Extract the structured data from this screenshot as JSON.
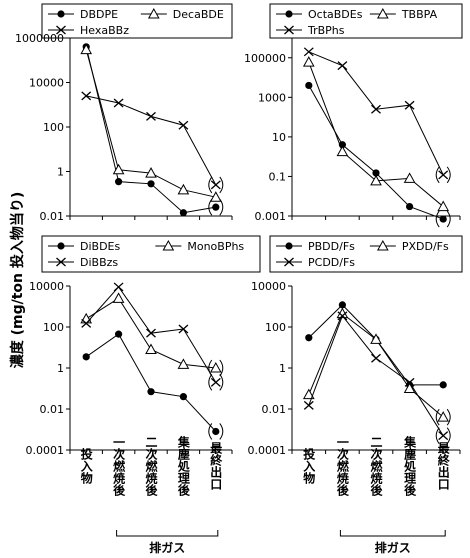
{
  "figure": {
    "ylabel": "濃度 (mg/ton 投入物当り)",
    "categories": [
      "投入物",
      "一次燃焼後",
      "二次燃焼後",
      "集塵処理後",
      "最終出口"
    ],
    "group_label": "排ガス"
  },
  "chart_data": [
    {
      "type": "line",
      "panel": "top-left",
      "yscale": "log",
      "ylim": [
        0.01,
        1000000
      ],
      "yticks": [
        "0.01",
        "1",
        "100",
        "10000",
        "1000000"
      ],
      "categories": [
        "投入物",
        "一次燃焼後",
        "二次燃焼後",
        "集塵処理後",
        "最終出口"
      ],
      "series": [
        {
          "name": "DBDPE",
          "marker": "circle",
          "values": [
            400000,
            0.35,
            0.28,
            0.014,
            0.025
          ],
          "bracketed_last": true
        },
        {
          "name": "DecaBDE",
          "marker": "triangle",
          "values": [
            300000,
            1.2,
            0.85,
            0.15,
            0.07
          ],
          "bracketed_last": false
        },
        {
          "name": "HexaBBz",
          "marker": "x",
          "values": [
            2500,
            1200,
            300,
            120,
            0.25
          ],
          "bracketed_last": true
        }
      ]
    },
    {
      "type": "line",
      "panel": "top-right",
      "yscale": "log",
      "ylim": [
        0.001,
        1000000
      ],
      "yticks": [
        "0.001",
        "0.1",
        "10",
        "1000",
        "100000"
      ],
      "categories": [
        "投入物",
        "一次燃焼後",
        "二次燃焼後",
        "集塵処理後",
        "最終出口"
      ],
      "series": [
        {
          "name": "OctaBDEs",
          "marker": "circle",
          "values": [
            4000,
            4,
            0.15,
            0.003,
            0.0007
          ],
          "bracketed_last": true
        },
        {
          "name": "TBBPA",
          "marker": "triangle",
          "values": [
            60000,
            1.8,
            0.06,
            0.08,
            0.003
          ],
          "bracketed_last": false
        },
        {
          "name": "TrBPhs",
          "marker": "x",
          "values": [
            200000,
            40000,
            250,
            400,
            0.12
          ],
          "bracketed_last": true
        }
      ]
    },
    {
      "type": "line",
      "panel": "bottom-left",
      "yscale": "log",
      "ylim": [
        0.0001,
        10000
      ],
      "yticks": [
        "0.0001",
        "0.01",
        "1",
        "100",
        "10000"
      ],
      "categories": [
        "投入物",
        "一次燃焼後",
        "二次燃焼後",
        "集塵処理後",
        "最終出口"
      ],
      "series": [
        {
          "name": "DiBDEs",
          "marker": "circle",
          "values": [
            3.5,
            45,
            0.07,
            0.04,
            0.0008
          ],
          "bracketed_last": true
        },
        {
          "name": "MonoBPhs",
          "marker": "triangle",
          "values": [
            250,
            2500,
            8,
            1.5,
            1
          ],
          "bracketed_last": true
        },
        {
          "name": "DiBBzs",
          "marker": "x",
          "values": [
            150,
            9000,
            50,
            80,
            0.2
          ],
          "bracketed_last": true
        }
      ]
    },
    {
      "type": "line",
      "panel": "bottom-right",
      "yscale": "log",
      "ylim": [
        0.0001,
        10000
      ],
      "yticks": [
        "0.0001",
        "0.01",
        "1",
        "100",
        "10000"
      ],
      "categories": [
        "投入物",
        "一次燃焼後",
        "二次燃焼後",
        "集塵処理後",
        "最終出口"
      ],
      "series": [
        {
          "name": "PBDD/Fs",
          "marker": "circle",
          "values": [
            30,
            1200,
            25,
            0.15,
            0.15
          ],
          "bracketed_last": false
        },
        {
          "name": "PXDD/Fs",
          "marker": "triangle",
          "values": [
            0.05,
            450,
            25,
            0.1,
            0.004
          ],
          "bracketed_last": true
        },
        {
          "name": "PCDD/Fs",
          "marker": "x",
          "values": [
            0.015,
            350,
            3,
            0.2,
            0.0005
          ],
          "bracketed_last": true
        }
      ]
    }
  ]
}
